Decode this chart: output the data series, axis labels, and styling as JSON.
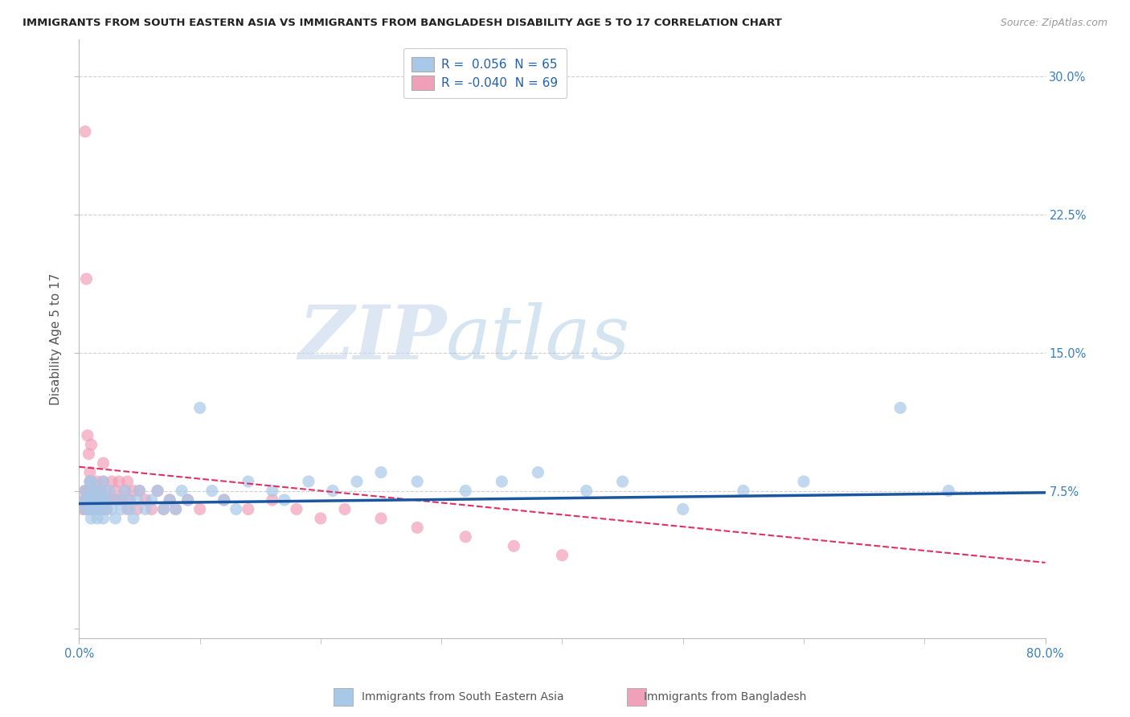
{
  "title": "IMMIGRANTS FROM SOUTH EASTERN ASIA VS IMMIGRANTS FROM BANGLADESH DISABILITY AGE 5 TO 17 CORRELATION CHART",
  "source": "Source: ZipAtlas.com",
  "ylabel": "Disability Age 5 to 17",
  "yticks": [
    0.0,
    0.075,
    0.15,
    0.225,
    0.3
  ],
  "ytick_labels": [
    "",
    "7.5%",
    "15.0%",
    "22.5%",
    "30.0%"
  ],
  "xlim": [
    0.0,
    0.8
  ],
  "ylim": [
    -0.005,
    0.32
  ],
  "legend_blue_label": "R =  0.056  N = 65",
  "legend_pink_label": "R = -0.040  N = 69",
  "blue_color": "#a8c8e8",
  "pink_color": "#f0a0b8",
  "trendline_blue_color": "#1a56a0",
  "trendline_pink_color": "#e03060",
  "watermark_zip": "ZIP",
  "watermark_atlas": "atlas",
  "footer_blue": "Immigrants from South Eastern Asia",
  "footer_pink": "Immigrants from Bangladesh",
  "blue_scatter_x": [
    0.005,
    0.005,
    0.005,
    0.007,
    0.008,
    0.009,
    0.01,
    0.01,
    0.01,
    0.01,
    0.012,
    0.013,
    0.014,
    0.015,
    0.015,
    0.016,
    0.017,
    0.018,
    0.019,
    0.02,
    0.02,
    0.02,
    0.022,
    0.023,
    0.025,
    0.027,
    0.03,
    0.032,
    0.035,
    0.038,
    0.04,
    0.042,
    0.045,
    0.048,
    0.05,
    0.055,
    0.06,
    0.065,
    0.07,
    0.075,
    0.08,
    0.085,
    0.09,
    0.1,
    0.11,
    0.12,
    0.13,
    0.14,
    0.16,
    0.17,
    0.19,
    0.21,
    0.23,
    0.25,
    0.28,
    0.32,
    0.35,
    0.38,
    0.42,
    0.45,
    0.5,
    0.55,
    0.6,
    0.68,
    0.72
  ],
  "blue_scatter_y": [
    0.065,
    0.07,
    0.075,
    0.07,
    0.065,
    0.08,
    0.06,
    0.07,
    0.075,
    0.08,
    0.065,
    0.07,
    0.065,
    0.06,
    0.075,
    0.07,
    0.065,
    0.075,
    0.07,
    0.06,
    0.07,
    0.08,
    0.065,
    0.07,
    0.075,
    0.065,
    0.06,
    0.07,
    0.065,
    0.075,
    0.07,
    0.065,
    0.06,
    0.07,
    0.075,
    0.065,
    0.07,
    0.075,
    0.065,
    0.07,
    0.065,
    0.075,
    0.07,
    0.12,
    0.075,
    0.07,
    0.065,
    0.08,
    0.075,
    0.07,
    0.08,
    0.075,
    0.08,
    0.085,
    0.08,
    0.075,
    0.08,
    0.085,
    0.075,
    0.08,
    0.065,
    0.075,
    0.08,
    0.12,
    0.075
  ],
  "pink_scatter_x": [
    0.003,
    0.004,
    0.005,
    0.005,
    0.006,
    0.006,
    0.007,
    0.007,
    0.008,
    0.008,
    0.009,
    0.009,
    0.01,
    0.01,
    0.01,
    0.01,
    0.011,
    0.012,
    0.013,
    0.014,
    0.015,
    0.015,
    0.016,
    0.017,
    0.018,
    0.019,
    0.02,
    0.02,
    0.02,
    0.022,
    0.023,
    0.025,
    0.027,
    0.03,
    0.03,
    0.033,
    0.035,
    0.038,
    0.04,
    0.04,
    0.042,
    0.045,
    0.048,
    0.05,
    0.055,
    0.06,
    0.065,
    0.07,
    0.075,
    0.08,
    0.09,
    0.1,
    0.12,
    0.14,
    0.16,
    0.18,
    0.2,
    0.22,
    0.25,
    0.28,
    0.32,
    0.36,
    0.4,
    0.005,
    0.006,
    0.007,
    0.008,
    0.009,
    0.01
  ],
  "pink_scatter_y": [
    0.065,
    0.07,
    0.075,
    0.065,
    0.07,
    0.075,
    0.065,
    0.07,
    0.065,
    0.075,
    0.07,
    0.08,
    0.065,
    0.07,
    0.075,
    0.08,
    0.065,
    0.07,
    0.075,
    0.065,
    0.07,
    0.08,
    0.065,
    0.07,
    0.075,
    0.065,
    0.07,
    0.08,
    0.09,
    0.075,
    0.065,
    0.07,
    0.08,
    0.07,
    0.075,
    0.08,
    0.07,
    0.075,
    0.065,
    0.08,
    0.07,
    0.075,
    0.065,
    0.075,
    0.07,
    0.065,
    0.075,
    0.065,
    0.07,
    0.065,
    0.07,
    0.065,
    0.07,
    0.065,
    0.07,
    0.065,
    0.06,
    0.065,
    0.06,
    0.055,
    0.05,
    0.045,
    0.04,
    0.27,
    0.19,
    0.105,
    0.095,
    0.085,
    0.1
  ],
  "blue_trend_x": [
    0.0,
    0.8
  ],
  "blue_trend_y": [
    0.068,
    0.074
  ],
  "pink_trend_x": [
    0.0,
    0.8
  ],
  "pink_trend_y": [
    0.088,
    0.036
  ],
  "dot_size": 120,
  "grid_color": "#d0d0d0",
  "background_color": "#ffffff"
}
